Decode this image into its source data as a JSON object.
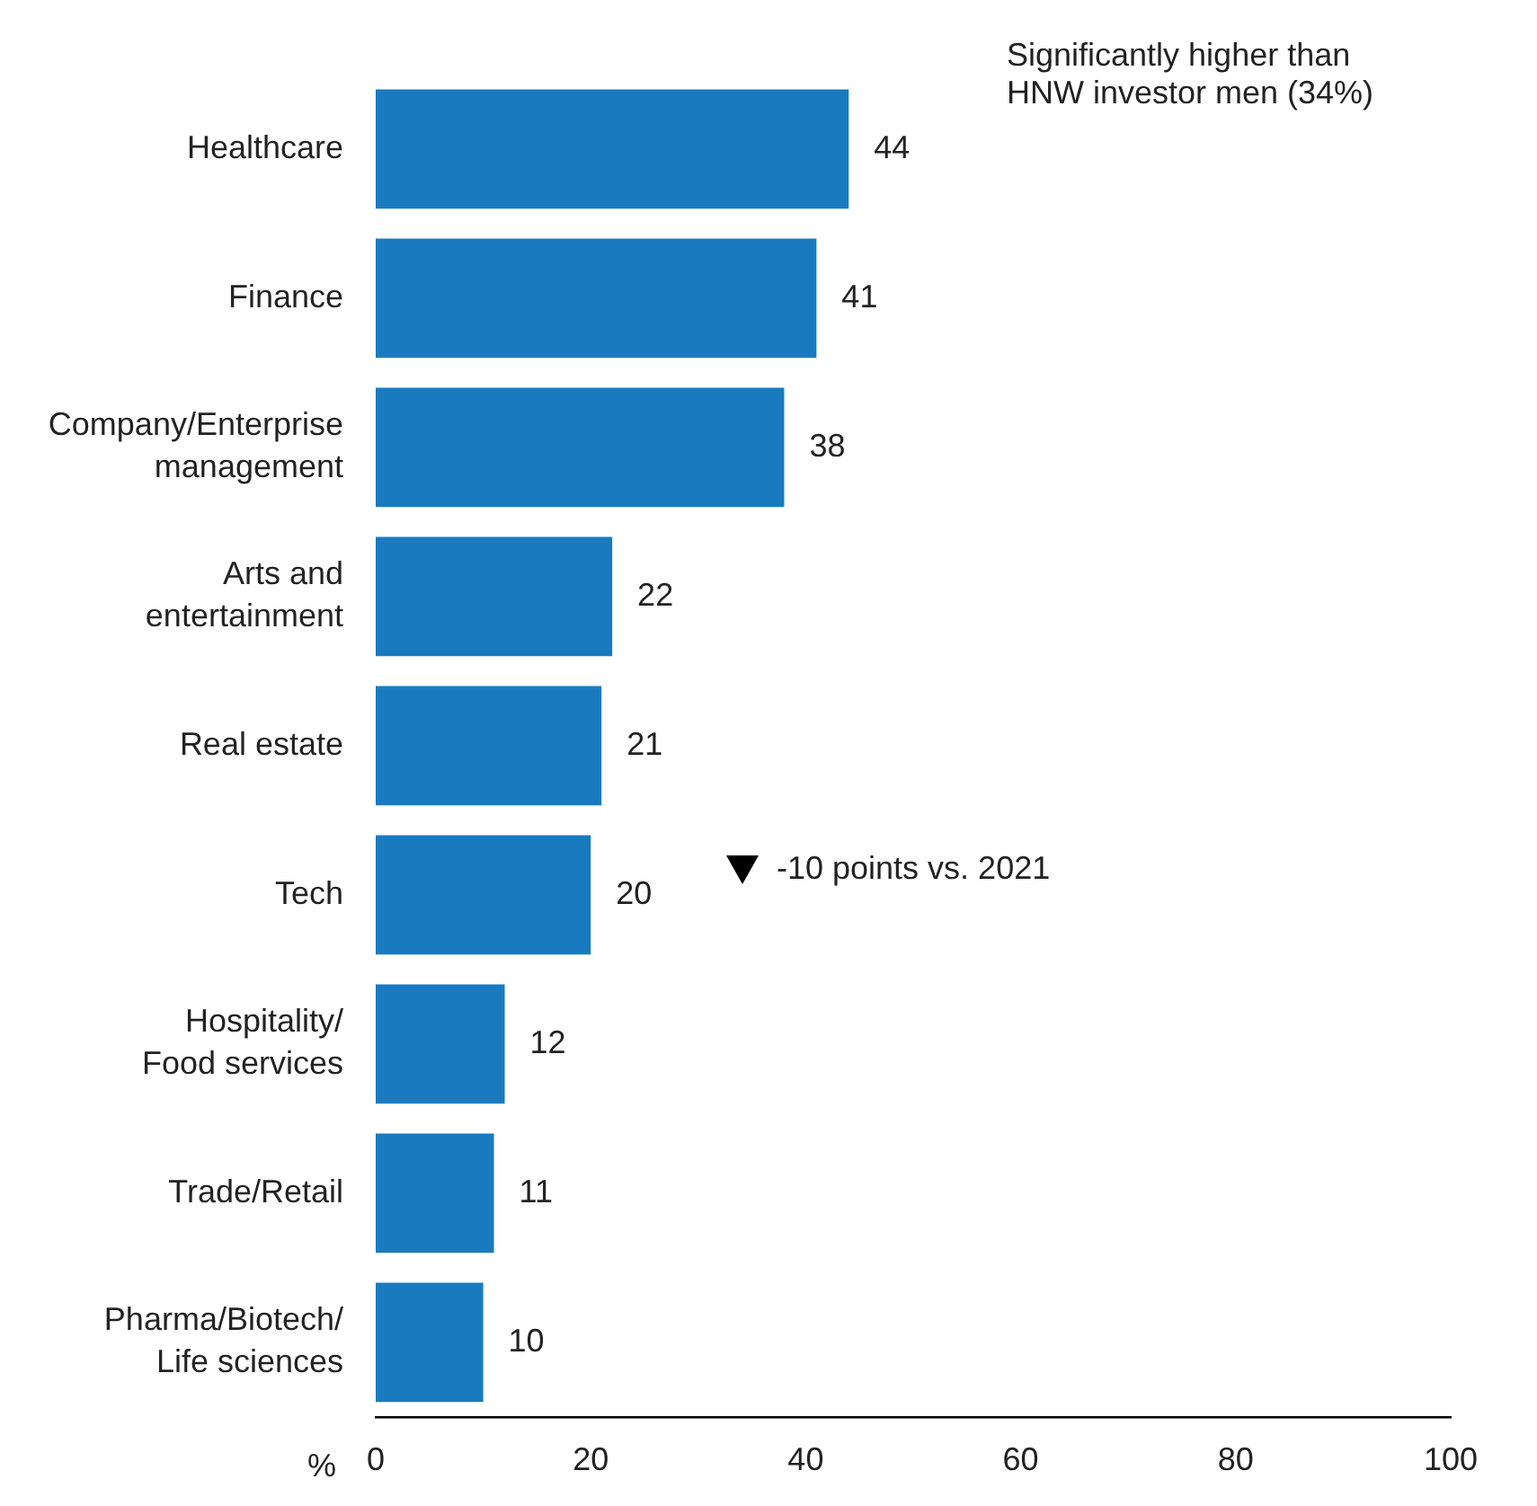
{
  "chart_data": {
    "type": "bar",
    "orientation": "horizontal",
    "xlabel": "%",
    "categories": [
      "Healthcare",
      "Finance",
      "Company/Enterprise management",
      "Arts and entertainment",
      "Real estate",
      "Tech",
      "Hospitality/ Food services",
      "Trade/Retail",
      "Pharma/Biotech/ Life sciences"
    ],
    "values": [
      44,
      41,
      38,
      22,
      21,
      20,
      12,
      11,
      10
    ],
    "color": "#1a7abf",
    "xlim": [
      0,
      100
    ],
    "xticks": [
      0,
      20,
      40,
      60,
      80,
      100
    ],
    "grid": false,
    "legend": false,
    "data_labels": true,
    "annotations": [
      "Significantly higher than HNW investor men (34%)",
      "-10 points vs. 2021"
    ]
  }
}
